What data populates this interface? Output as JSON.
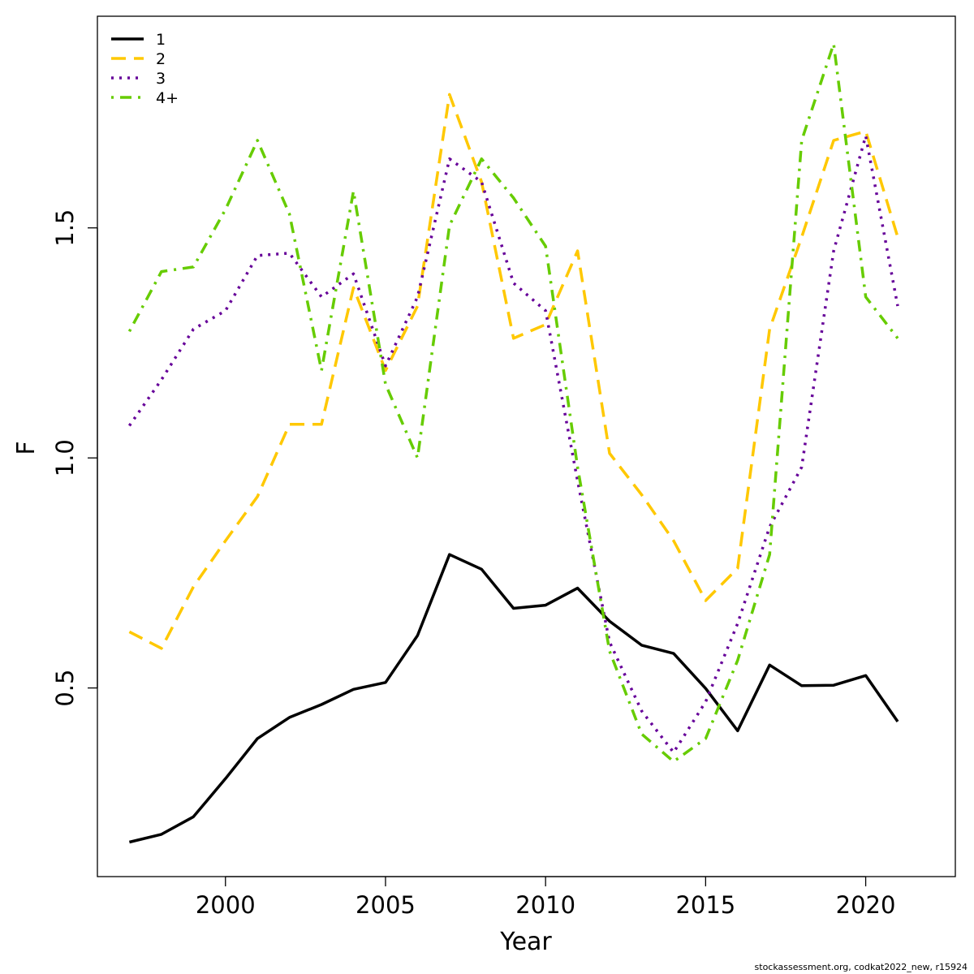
{
  "chart_data": {
    "type": "line",
    "xlabel": "Year",
    "ylabel": "F",
    "xlim": [
      1996,
      2022.8
    ],
    "ylim": [
      0.09,
      1.96
    ],
    "x_ticks": [
      2000,
      2005,
      2010,
      2015,
      2020
    ],
    "y_ticks": [
      0.5,
      1.0,
      1.5
    ],
    "y_tick_labels": [
      "0.5",
      "1.0",
      "1.5"
    ],
    "x_tick_labels": [
      "2000",
      "2005",
      "2010",
      "2015",
      "2020"
    ],
    "legend_position": "top-left",
    "grid": false,
    "x": [
      1997,
      1998,
      1999,
      2000,
      2001,
      2002,
      2003,
      2004,
      2005,
      2006,
      2007,
      2008,
      2009,
      2010,
      2011,
      2012,
      2013,
      2014,
      2015,
      2016,
      2017,
      2018,
      2019,
      2020,
      2021
    ],
    "series": [
      {
        "name": "1",
        "color": "#000000",
        "dash": "solid",
        "values": [
          0.165,
          0.182,
          0.22,
          0.303,
          0.39,
          0.436,
          0.464,
          0.497,
          0.512,
          0.614,
          0.79,
          0.758,
          0.673,
          0.68,
          0.717,
          0.645,
          0.593,
          0.575,
          0.499,
          0.407,
          0.55,
          0.505,
          0.506,
          0.527,
          0.427
        ]
      },
      {
        "name": "2",
        "color": "#ffc800",
        "dash": "dashed",
        "values": [
          0.622,
          0.586,
          0.72,
          0.82,
          0.916,
          1.073,
          1.073,
          1.37,
          1.19,
          1.33,
          1.79,
          1.6,
          1.26,
          1.29,
          1.45,
          1.01,
          0.92,
          0.82,
          0.69,
          0.76,
          1.28,
          1.48,
          1.69,
          1.71,
          1.48
        ]
      },
      {
        "name": "3",
        "color": "#660099",
        "dash": "dotted",
        "values": [
          1.07,
          1.17,
          1.28,
          1.32,
          1.44,
          1.445,
          1.35,
          1.4,
          1.2,
          1.35,
          1.65,
          1.6,
          1.38,
          1.32,
          0.95,
          0.6,
          0.45,
          0.36,
          0.47,
          0.64,
          0.85,
          0.98,
          1.45,
          1.7,
          1.33
        ]
      },
      {
        "name": "4+",
        "color": "#66cc00",
        "dash": "dotdash",
        "values": [
          1.275,
          1.405,
          1.415,
          1.54,
          1.69,
          1.53,
          1.19,
          1.58,
          1.16,
          1.0,
          1.505,
          1.65,
          1.565,
          1.46,
          0.98,
          0.58,
          0.4,
          0.34,
          0.39,
          0.56,
          0.79,
          1.69,
          1.9,
          1.35,
          1.26
        ]
      }
    ]
  },
  "footer_text": "stockassessment.org, codkat2022_new, r15924"
}
